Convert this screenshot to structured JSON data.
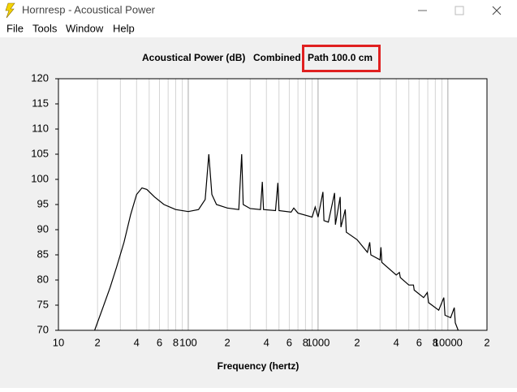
{
  "window": {
    "title": "Hornresp - Acoustical Power",
    "menu": [
      "File",
      "Tools",
      "Window",
      "Help"
    ]
  },
  "chart_data": {
    "type": "line",
    "title": "Acoustical Power (dB)",
    "annotations": [
      "Combined",
      "Path 100.0 cm"
    ],
    "x_label": "Frequency (hertz)",
    "x": [
      19,
      22,
      25,
      28,
      32,
      36,
      40,
      44,
      48,
      55,
      65,
      80,
      100,
      120,
      135,
      144,
      152,
      165,
      200,
      245,
      258,
      265,
      300,
      360,
      372,
      380,
      470,
      490,
      500,
      620,
      650,
      700,
      900,
      950,
      1000,
      1090,
      1110,
      1200,
      1340,
      1360,
      1480,
      1500,
      1620,
      1650,
      2000,
      2400,
      2500,
      2550,
      3000,
      3050,
      3100,
      4000,
      4230,
      4300,
      5000,
      5430,
      5500,
      6500,
      6940,
      7100,
      8500,
      9300,
      9500,
      10500,
      11200,
      11400,
      12000
    ],
    "values": [
      70,
      74.5,
      78.5,
      82.5,
      87.5,
      93,
      97,
      98.3,
      98,
      96.5,
      95,
      94,
      93.6,
      94,
      96,
      105,
      97,
      95,
      94.3,
      94,
      105,
      95,
      94.2,
      94,
      99.5,
      94,
      93.8,
      99.3,
      93.8,
      93.5,
      94.3,
      93.3,
      92.5,
      94.5,
      92.5,
      97.5,
      91.8,
      91.5,
      97.3,
      91,
      96.5,
      90.5,
      94,
      89.5,
      88,
      85.5,
      87.5,
      85,
      84,
      86.5,
      83.5,
      81,
      81.5,
      80.5,
      79,
      79,
      78,
      76.5,
      77.5,
      75.5,
      74,
      76.5,
      73,
      72.5,
      74.5,
      71.5,
      70
    ],
    "color": "#000000",
    "xscale": "log",
    "xlim": [
      10,
      20000
    ],
    "xticks": [
      10,
      {
        "value": 20,
        "label": "2"
      },
      {
        "value": 40,
        "label": "4"
      },
      {
        "value": 60,
        "label": "6"
      },
      {
        "value": 80,
        "label": "8"
      },
      100,
      {
        "value": 200,
        "label": "2"
      },
      {
        "value": 400,
        "label": "4"
      },
      {
        "value": 600,
        "label": "6"
      },
      {
        "value": 800,
        "label": "8"
      },
      1000,
      {
        "value": 2000,
        "label": "2"
      },
      {
        "value": 4000,
        "label": "4"
      },
      {
        "value": 6000,
        "label": "6"
      },
      {
        "value": 8000,
        "label": "8"
      },
      10000,
      {
        "value": 20000,
        "label": "2"
      }
    ],
    "xminorticks": [
      30,
      50,
      70,
      90,
      300,
      500,
      700,
      900,
      3000,
      5000,
      7000,
      9000
    ],
    "ylim": [
      70,
      120
    ],
    "yticks": [
      70,
      75,
      80,
      85,
      90,
      95,
      100,
      105,
      110,
      115,
      120
    ],
    "grid": "x"
  }
}
